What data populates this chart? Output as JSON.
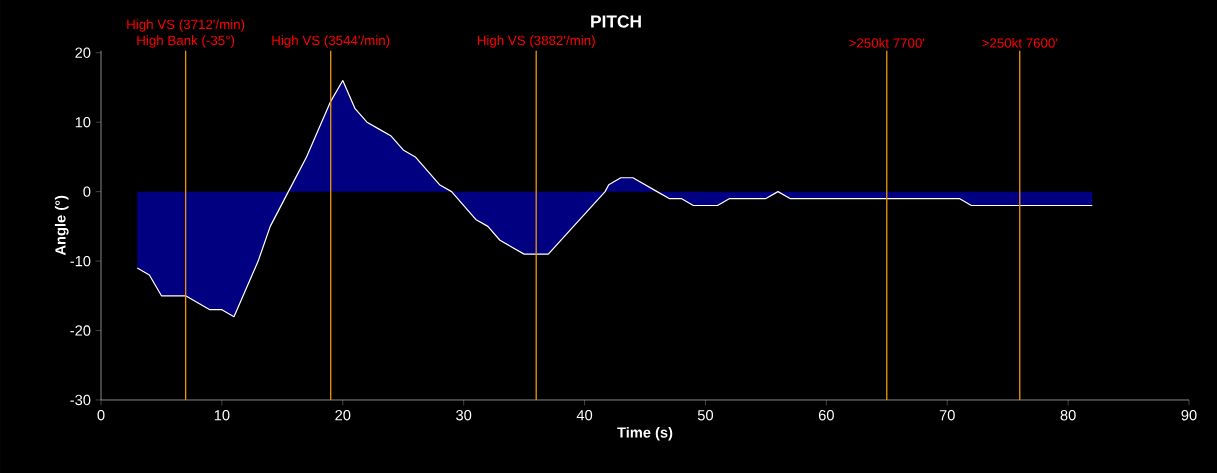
{
  "chart_data": {
    "type": "area",
    "title": "PITCH",
    "xlabel": "Time (s)",
    "ylabel": "Angle (°)",
    "xlim": [
      0,
      90
    ],
    "xticks": [
      0,
      10,
      20,
      30,
      40,
      50,
      60,
      70,
      80,
      90
    ],
    "ylim": [
      -30,
      20.3
    ],
    "yticks": [
      -30,
      -20,
      -10,
      0,
      10,
      20
    ],
    "series": [
      {
        "color": "#000080",
        "x": [
          3,
          4,
          5,
          7,
          8,
          9,
          10,
          11,
          13,
          14,
          15.5,
          17,
          18,
          19,
          20,
          21,
          22,
          23,
          24,
          25,
          26,
          28,
          29,
          31,
          32,
          33,
          34,
          35,
          37,
          41.7,
          42,
          43,
          44,
          46,
          47,
          48,
          49,
          51,
          52,
          55,
          56,
          57,
          71,
          72,
          82
        ],
        "values": [
          -11,
          -12,
          -15,
          -15,
          -16,
          -17,
          -17,
          -18,
          -10,
          -5,
          0,
          5,
          9,
          13,
          16,
          12,
          10,
          9,
          8,
          6,
          5,
          1,
          0,
          -4,
          -5,
          -7,
          -8,
          -9,
          -9,
          0,
          1,
          2,
          2,
          0,
          -1,
          -1,
          -2,
          -2,
          -1,
          -1,
          0,
          -1,
          -1,
          -2,
          -2
        ]
      }
    ],
    "ref_lines": [
      {
        "axis": "x",
        "value": 7,
        "label": "High VS (3712'/min)",
        "color": "#e69500"
      },
      {
        "axis": "x",
        "value": 19,
        "label": "High VS (3544'/min)",
        "color": "#e69500"
      },
      {
        "axis": "x",
        "value": 36,
        "label": "High VS (3882'/min)",
        "color": "#e69500"
      },
      {
        "axis": "x",
        "value": 65,
        "label": ">250kt 7700'",
        "color": "#e69500"
      },
      {
        "axis": "x",
        "value": 76,
        "label": ">250kt 7600'",
        "color": "#e69500"
      }
    ],
    "annotations": [
      {
        "text": "High Bank (-35°)",
        "x": 7,
        "y": 20.3
      }
    ],
    "grid": false
  }
}
